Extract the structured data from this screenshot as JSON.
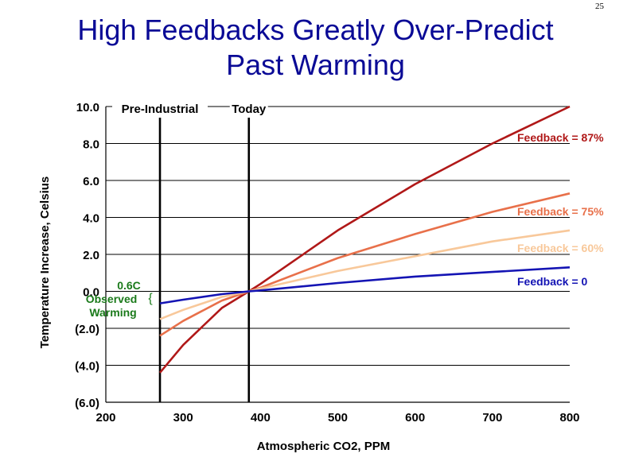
{
  "slide_number": "25",
  "title_lines": [
    "High Feedbacks Greatly Over-Predict",
    "Past Warming"
  ],
  "chart_data": {
    "type": "line",
    "xlabel": "Atmospheric CO2, PPM",
    "ylabel": "Temperature Increase, Celsius",
    "xlim": [
      200,
      800
    ],
    "ylim": [
      -6,
      10
    ],
    "x_ticks": [
      200,
      300,
      400,
      500,
      600,
      700,
      800
    ],
    "x_tick_labels": [
      "200",
      "300",
      "400",
      "500",
      "600",
      "700",
      "800"
    ],
    "y_ticks": [
      10,
      8,
      6,
      4,
      2,
      0,
      -2,
      -4,
      -6
    ],
    "y_tick_labels": [
      "10.0",
      "8.0",
      "6.0",
      "4.0",
      "2.0",
      "0.0",
      "(2.0)",
      "(4.0)",
      "(6.0)"
    ],
    "grid": "horizontal",
    "series": [
      {
        "name": "Feedback = 87%",
        "color": "#b01818",
        "x": [
          270,
          300,
          350,
          385,
          400,
          500,
          600,
          700,
          800
        ],
        "values": [
          -4.4,
          -2.9,
          -0.9,
          0.0,
          0.4,
          3.3,
          5.8,
          8.0,
          10.0
        ]
      },
      {
        "name": "Feedback = 75%",
        "color": "#e8704a",
        "x": [
          270,
          300,
          350,
          385,
          400,
          500,
          600,
          700,
          800
        ],
        "values": [
          -2.4,
          -1.6,
          -0.5,
          0.0,
          0.2,
          1.8,
          3.1,
          4.3,
          5.3
        ]
      },
      {
        "name": "Feedback = 60%",
        "color": "#f8c89a",
        "x": [
          270,
          300,
          350,
          385,
          400,
          500,
          600,
          700,
          800
        ],
        "values": [
          -1.5,
          -1.0,
          -0.3,
          0.0,
          0.15,
          1.1,
          1.9,
          2.7,
          3.3
        ]
      },
      {
        "name": "Feedback = 0",
        "color": "#1414b4",
        "x": [
          270,
          300,
          350,
          385,
          400,
          500,
          600,
          700,
          800
        ],
        "values": [
          -0.65,
          -0.45,
          -0.15,
          0.0,
          0.05,
          0.45,
          0.8,
          1.05,
          1.3
        ]
      }
    ],
    "vertical_markers": [
      {
        "label": "Pre-Industrial",
        "x": 270
      },
      {
        "label": "Today",
        "x": 385
      }
    ],
    "annotation": {
      "lines": [
        "0.6C",
        "Observed",
        "Warming"
      ],
      "color": "#1a7a1a",
      "brace": "{"
    }
  }
}
